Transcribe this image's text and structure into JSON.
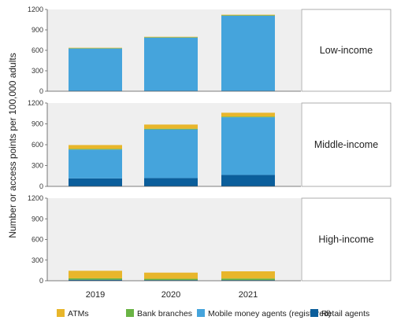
{
  "chart_data": {
    "type": "bar",
    "stacked": true,
    "categories": [
      "2019",
      "2020",
      "2021"
    ],
    "ylabel": "Number or access points per 100,000 adults",
    "ylim": [
      0,
      1200
    ],
    "yticks": [
      "0",
      "300",
      "600",
      "900",
      "1200"
    ],
    "grid": false,
    "legend_position": "bottom",
    "series_colors": {
      "ATMs": "#e8b62b",
      "Bank branches": "#6ab445",
      "Mobile money agents (registered)": "#45a4dc",
      "Retail agents": "#0b5e9b"
    },
    "legend": [
      "ATMs",
      "Bank branches",
      "Mobile money agents (registered)",
      "Retail agents"
    ],
    "panels": [
      {
        "label": "Low-income",
        "series": [
          {
            "name": "Retail agents",
            "values": [
              0,
              0,
              0
            ]
          },
          {
            "name": "Mobile money agents (registered)",
            "values": [
              628,
              788,
              1110
            ]
          },
          {
            "name": "Bank branches",
            "values": [
              4,
              4,
              4
            ]
          },
          {
            "name": "ATMs",
            "values": [
              6,
              7,
              9
            ]
          }
        ]
      },
      {
        "label": "Middle-income",
        "series": [
          {
            "name": "Retail agents",
            "values": [
              115,
              120,
              165
            ]
          },
          {
            "name": "Mobile money agents (registered)",
            "values": [
              415,
              700,
              830
            ]
          },
          {
            "name": "Bank branches",
            "values": [
              10,
              10,
              10
            ]
          },
          {
            "name": "ATMs",
            "values": [
              55,
              60,
              55
            ]
          }
        ]
      },
      {
        "label": "High-income",
        "series": [
          {
            "name": "Retail agents",
            "values": [
              15,
              10,
              10
            ]
          },
          {
            "name": "Mobile money agents (registered)",
            "values": [
              0,
              0,
              0
            ]
          },
          {
            "name": "Bank branches",
            "values": [
              20,
              18,
              22
            ]
          },
          {
            "name": "ATMs",
            "values": [
              110,
              90,
              105
            ]
          }
        ]
      }
    ]
  }
}
